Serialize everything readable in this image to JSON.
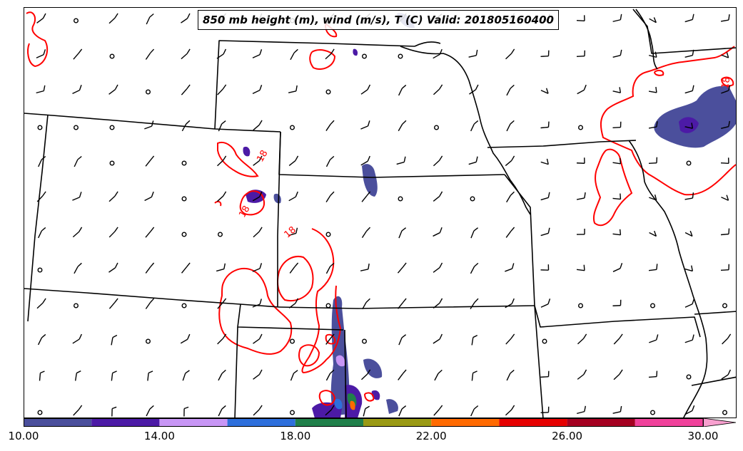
{
  "title": "850 mb height (m), wind (m/s), T (C) Valid: 201805160400",
  "colors": {
    "boundary": "#000000",
    "contour": "#ff0000",
    "barb": "#000000"
  },
  "contour_label": "18",
  "colorbar": {
    "colors": [
      "#4b4f9c",
      "#4c1aa6",
      "#c896f5",
      "#2e6fdc",
      "#20804a",
      "#9a9a14",
      "#ff6a00",
      "#e60000",
      "#a50021",
      "#f0419b"
    ],
    "extend_color": "#f8a0cf",
    "tick_labels": [
      "10.00",
      "14.00",
      "18.00",
      "22.00",
      "26.00",
      "30.00"
    ]
  }
}
